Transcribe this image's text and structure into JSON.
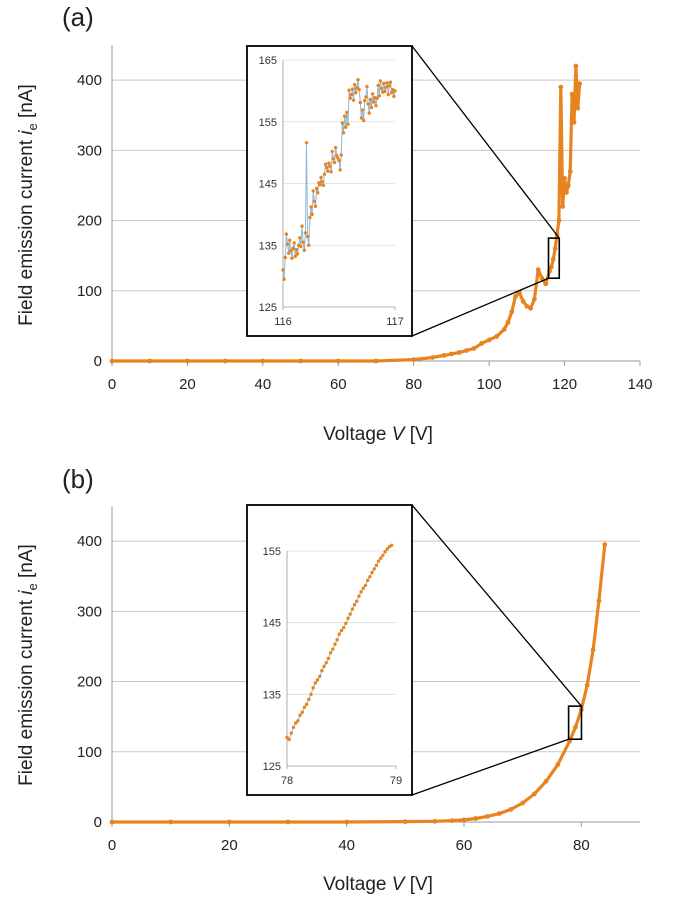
{
  "chart_data": [
    {
      "panel_label": "(a)",
      "type": "scatter",
      "xlabel": {
        "pre": "Voltage ",
        "var": "V",
        "post": " [V]"
      },
      "ylabel": {
        "pre": "Field emission current ",
        "var": "i",
        "sub": "e",
        "post": " [nA]"
      },
      "xlim": [
        0,
        140
      ],
      "ylim": [
        0,
        450
      ],
      "xticks": [
        "0",
        "20",
        "40",
        "60",
        "80",
        "100",
        "120",
        "140"
      ],
      "yticks": [
        "0",
        "100",
        "200",
        "300",
        "400"
      ],
      "grid": true,
      "colors": {
        "marker": "#E8841F",
        "line": "#8DB8DD",
        "zoom_box": "#000000"
      },
      "series": [
        {
          "x": [
            0,
            10,
            20,
            30,
            40,
            50,
            60,
            70,
            80,
            85,
            88,
            90,
            92,
            94,
            96,
            98,
            100,
            102,
            104,
            105,
            106,
            107,
            108,
            109,
            110,
            111,
            112,
            113,
            114,
            115,
            116,
            116.5,
            117,
            117.5,
            118,
            118.5,
            119,
            119.5,
            120,
            120.5,
            121,
            121.5,
            122,
            122.5,
            123,
            123.5,
            124
          ],
          "y": [
            0,
            0,
            0,
            0,
            0,
            0,
            0,
            0,
            2,
            5,
            8,
            10,
            12,
            15,
            18,
            25,
            30,
            35,
            45,
            55,
            70,
            92,
            98,
            85,
            78,
            75,
            88,
            130,
            118,
            110,
            128,
            134,
            145,
            160,
            180,
            200,
            390,
            220,
            260,
            240,
            250,
            270,
            380,
            340,
            420,
            360,
            395
          ]
        }
      ],
      "inset": {
        "type": "line",
        "xlim": [
          116,
          117
        ],
        "ylim": [
          125,
          165
        ],
        "xticks": [
          "116",
          "117"
        ],
        "yticks": [
          "125",
          "135",
          "145",
          "155",
          "165"
        ],
        "zoom_region": {
          "x": [
            116,
            117
          ],
          "y": [
            125,
            165
          ]
        },
        "series": [
          {
            "x": [
              116.0,
              116.01,
              116.02,
              116.03,
              116.04,
              116.05,
              116.06,
              116.07,
              116.08,
              116.09,
              116.1,
              116.11,
              116.12,
              116.13,
              116.14,
              116.15,
              116.16,
              116.17,
              116.18,
              116.19,
              116.2,
              116.21,
              116.22,
              116.23,
              116.24,
              116.25,
              116.26,
              116.27,
              116.28,
              116.29,
              116.3,
              116.31,
              116.32,
              116.33,
              116.34,
              116.35,
              116.36,
              116.37,
              116.38,
              116.39,
              116.4,
              116.41,
              116.42,
              116.43,
              116.44,
              116.45,
              116.46,
              116.47,
              116.48,
              116.49,
              116.5,
              116.51,
              116.52,
              116.53,
              116.54,
              116.55,
              116.56,
              116.57,
              116.58,
              116.59,
              116.6,
              116.61,
              116.62,
              116.63,
              116.64,
              116.65,
              116.66,
              116.67,
              116.68,
              116.69,
              116.7,
              116.71,
              116.72,
              116.73,
              116.74,
              116.75,
              116.76,
              116.77,
              116.78,
              116.79,
              116.8,
              116.81,
              116.82,
              116.83,
              116.84,
              116.85,
              116.86,
              116.87,
              116.88,
              116.89,
              116.9,
              116.91,
              116.92,
              116.93,
              116.94,
              116.95,
              116.96,
              116.97,
              116.98,
              116.99,
              117.0
            ],
            "y": [
              131.0,
              129.5,
              133.0,
              136.8,
              135.2,
              133.7,
              135.8,
              134.1,
              132.9,
              134.5,
              135.4,
              133.2,
              134.3,
              133.6,
              135.0,
              136.2,
              134.8,
              138.1,
              135.5,
              134.2,
              137.0,
              151.6,
              136.4,
              135.0,
              139.5,
              141.2,
              140.0,
              143.8,
              142.1,
              141.3,
              144.2,
              143.5,
              145.1,
              144.8,
              146.0,
              145.3,
              144.7,
              146.5,
              148.1,
              147.6,
              147.0,
              148.3,
              147.8,
              146.9,
              150.2,
              149.0,
              148.4,
              150.8,
              149.5,
              149.1,
              148.7,
              147.2,
              149.6,
              154.8,
              153.2,
              155.9,
              154.1,
              156.5,
              154.6,
              160.1,
              158.8,
              159.4,
              160.3,
              158.5,
              161.0,
              159.7,
              160.5,
              161.8,
              160.2,
              158.1,
              155.6,
              156.9,
              155.2,
              158.4,
              159.0,
              160.7,
              157.9,
              156.4,
              158.6,
              157.3,
              159.5,
              158.2,
              158.9,
              157.6,
              158.8,
              160.9,
              159.2,
              161.6,
              160.4,
              159.8,
              161.2,
              159.9,
              160.6,
              161.3,
              159.4,
              160.8,
              161.4,
              159.7,
              160.2,
              159.1,
              160.0
            ]
          }
        ]
      }
    },
    {
      "panel_label": "(b)",
      "type": "scatter",
      "xlabel": {
        "pre": "Voltage ",
        "var": "V",
        "post": " [V]"
      },
      "ylabel": {
        "pre": "Field emission current ",
        "var": "i",
        "sub": "e",
        "post": " [nA]"
      },
      "xlim": [
        0,
        90
      ],
      "ylim": [
        0,
        450
      ],
      "xticks": [
        "0",
        "20",
        "40",
        "60",
        "80"
      ],
      "yticks": [
        "0",
        "100",
        "200",
        "300",
        "400"
      ],
      "grid": true,
      "colors": {
        "marker": "#E8841F",
        "line": "#8DB8DD",
        "zoom_box": "#000000"
      },
      "series": [
        {
          "x": [
            0,
            10,
            20,
            30,
            40,
            50,
            55,
            58,
            60,
            62,
            64,
            66,
            68,
            70,
            72,
            74,
            76,
            78,
            79,
            80,
            81,
            82,
            83,
            84
          ],
          "y": [
            0,
            0,
            0,
            0,
            0,
            0.5,
            1,
            2,
            3,
            5,
            8,
            12,
            18,
            27,
            40,
            58,
            82,
            115,
            135,
            160,
            195,
            245,
            315,
            395
          ]
        }
      ],
      "inset": {
        "type": "line",
        "xlim": [
          78,
          79
        ],
        "ylim": [
          125,
          155
        ],
        "xticks": [
          "78",
          "79"
        ],
        "yticks": [
          "125",
          "135",
          "145",
          "155"
        ],
        "zoom_region": {
          "x": [
            78,
            79
          ],
          "y": [
            125,
            155
          ]
        },
        "series": [
          {
            "x": [
              78.0,
              78.02,
              78.04,
              78.06,
              78.08,
              78.1,
              78.12,
              78.14,
              78.16,
              78.18,
              78.2,
              78.22,
              78.24,
              78.26,
              78.28,
              78.3,
              78.32,
              78.34,
              78.36,
              78.38,
              78.4,
              78.42,
              78.44,
              78.46,
              78.48,
              78.5,
              78.52,
              78.54,
              78.56,
              78.58,
              78.6,
              78.62,
              78.64,
              78.66,
              78.68,
              78.7,
              78.72,
              78.74,
              78.76,
              78.78,
              78.8,
              78.82,
              78.84,
              78.86,
              78.88,
              78.9,
              78.92,
              78.94,
              78.96
            ],
            "y": [
              129.0,
              128.7,
              129.6,
              130.4,
              131.0,
              131.3,
              132.1,
              132.5,
              133.2,
              133.6,
              134.3,
              135.0,
              135.9,
              136.6,
              137.0,
              137.5,
              138.3,
              138.9,
              139.4,
              140.0,
              140.8,
              141.3,
              142.0,
              142.6,
              143.4,
              143.9,
              144.3,
              144.9,
              145.6,
              146.2,
              146.9,
              147.5,
              148.0,
              148.7,
              149.3,
              149.8,
              150.2,
              150.9,
              151.4,
              152.0,
              152.5,
              153.0,
              153.6,
              154.0,
              154.4,
              154.9,
              155.3,
              155.6,
              155.8
            ]
          }
        ]
      }
    }
  ]
}
